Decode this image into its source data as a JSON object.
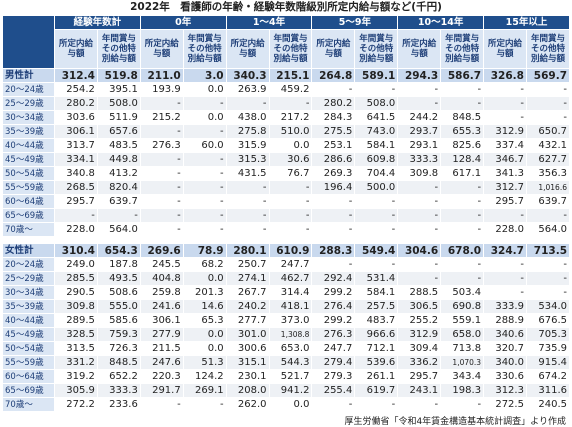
{
  "header": {
    "title": "2022年　看護師の年齢・経験年数階級別所定内給与額など(千円)"
  },
  "columns": {
    "groups": [
      "経験年数計",
      "0年",
      "1～4年",
      "5～9年",
      "10～14年",
      "15年以上"
    ],
    "sub": [
      "所定内給与額",
      "年間賞与その他特別給与額"
    ]
  },
  "sections": [
    {
      "rows": [
        {
          "label": "男性計",
          "values": [
            "312.4",
            "519.8",
            "211.0",
            "3.0",
            "340.3",
            "215.1",
            "264.8",
            "589.1",
            "294.3",
            "586.7",
            "326.8",
            "569.7"
          ]
        },
        {
          "label": "20～24歳",
          "values": [
            "254.2",
            "395.1",
            "193.9",
            "0.0",
            "263.9",
            "459.2",
            "-",
            "-",
            "-",
            "-",
            "-",
            "-"
          ]
        },
        {
          "label": "25～29歳",
          "values": [
            "280.2",
            "508.0",
            "-",
            "-",
            "-",
            "-",
            "280.2",
            "508.0",
            "-",
            "-",
            "-",
            "-"
          ]
        },
        {
          "label": "30～34歳",
          "values": [
            "303.6",
            "511.9",
            "215.2",
            "0.0",
            "438.0",
            "217.2",
            "284.3",
            "641.5",
            "244.2",
            "848.5",
            "-",
            "-"
          ]
        },
        {
          "label": "35～39歳",
          "values": [
            "306.1",
            "657.6",
            "-",
            "-",
            "275.8",
            "510.0",
            "275.5",
            "743.0",
            "293.7",
            "655.3",
            "312.9",
            "650.7"
          ]
        },
        {
          "label": "40～44歳",
          "values": [
            "313.7",
            "483.5",
            "276.3",
            "60.0",
            "315.9",
            "0.0",
            "253.1",
            "584.1",
            "293.1",
            "825.6",
            "337.4",
            "432.1"
          ]
        },
        {
          "label": "45～49歳",
          "values": [
            "334.1",
            "449.8",
            "-",
            "-",
            "315.3",
            "30.6",
            "286.6",
            "609.8",
            "333.3",
            "128.4",
            "346.7",
            "627.7"
          ]
        },
        {
          "label": "50～54歳",
          "values": [
            "340.8",
            "413.2",
            "-",
            "-",
            "431.5",
            "76.7",
            "269.3",
            "704.4",
            "309.8",
            "617.1",
            "341.3",
            "356.3"
          ]
        },
        {
          "label": "55～59歳",
          "values": [
            "268.5",
            "820.4",
            "-",
            "-",
            "-",
            "-",
            "196.4",
            "500.0",
            "-",
            "-",
            "312.7",
            "1,016.6"
          ]
        },
        {
          "label": "60～64歳",
          "values": [
            "295.7",
            "639.7",
            "-",
            "-",
            "-",
            "-",
            "-",
            "-",
            "-",
            "-",
            "295.7",
            "639.7"
          ]
        },
        {
          "label": "65～69歳",
          "values": [
            "-",
            "-",
            "-",
            "-",
            "-",
            "-",
            "-",
            "-",
            "-",
            "-",
            "-",
            "-"
          ]
        },
        {
          "label": "70歳～",
          "values": [
            "228.0",
            "564.0",
            "-",
            "-",
            "-",
            "-",
            "-",
            "-",
            "-",
            "-",
            "228.0",
            "564.0"
          ]
        }
      ]
    },
    {
      "rows": [
        {
          "label": "女性計",
          "values": [
            "310.4",
            "654.3",
            "269.6",
            "78.9",
            "280.1",
            "610.9",
            "288.3",
            "549.4",
            "304.6",
            "678.0",
            "324.7",
            "713.5"
          ]
        },
        {
          "label": "20～24歳",
          "values": [
            "249.0",
            "187.8",
            "245.5",
            "68.2",
            "250.7",
            "247.7",
            "-",
            "-",
            "-",
            "-",
            "-",
            "-"
          ]
        },
        {
          "label": "25～29歳",
          "values": [
            "285.5",
            "493.5",
            "404.8",
            "0.0",
            "274.1",
            "462.7",
            "292.4",
            "531.4",
            "-",
            "-",
            "-",
            "-"
          ]
        },
        {
          "label": "30～34歳",
          "values": [
            "290.5",
            "508.6",
            "259.8",
            "201.3",
            "267.7",
            "314.4",
            "299.2",
            "584.1",
            "288.5",
            "503.4",
            "-",
            "-"
          ]
        },
        {
          "label": "35～39歳",
          "values": [
            "309.8",
            "555.0",
            "241.6",
            "14.6",
            "240.2",
            "418.1",
            "276.4",
            "257.5",
            "306.5",
            "690.8",
            "333.9",
            "534.0"
          ]
        },
        {
          "label": "40～44歳",
          "values": [
            "289.5",
            "585.6",
            "306.1",
            "65.3",
            "277.7",
            "373.0",
            "299.2",
            "483.7",
            "255.2",
            "559.1",
            "288.9",
            "676.5"
          ]
        },
        {
          "label": "45～49歳",
          "values": [
            "328.5",
            "759.3",
            "277.9",
            "0.0",
            "301.0",
            "1,308.8",
            "276.3",
            "966.6",
            "312.9",
            "658.0",
            "340.6",
            "705.3"
          ]
        },
        {
          "label": "50～54歳",
          "values": [
            "313.5",
            "726.3",
            "211.5",
            "0.0",
            "300.6",
            "653.0",
            "247.7",
            "712.1",
            "309.4",
            "713.8",
            "320.7",
            "735.9"
          ]
        },
        {
          "label": "55～59歳",
          "values": [
            "331.2",
            "848.5",
            "247.6",
            "51.3",
            "315.1",
            "544.3",
            "279.4",
            "539.6",
            "336.2",
            "1,070.3",
            "340.0",
            "915.4"
          ]
        },
        {
          "label": "60～64歳",
          "values": [
            "319.2",
            "652.2",
            "220.3",
            "124.2",
            "230.1",
            "521.7",
            "279.3",
            "261.1",
            "295.7",
            "343.4",
            "330.6",
            "674.2"
          ]
        },
        {
          "label": "65～69歳",
          "values": [
            "305.9",
            "333.3",
            "291.7",
            "269.1",
            "208.0",
            "941.2",
            "255.4",
            "619.7",
            "243.1",
            "198.3",
            "312.3",
            "311.6"
          ]
        },
        {
          "label": "70歳～",
          "values": [
            "272.2",
            "233.6",
            "-",
            "-",
            "262.0",
            "0.0",
            "-",
            "-",
            "-",
            "-",
            "272.5",
            "240.5"
          ]
        }
      ]
    }
  ],
  "footer": "厚生労働省「令和4年賃金構造基本統計調査」より作成"
}
